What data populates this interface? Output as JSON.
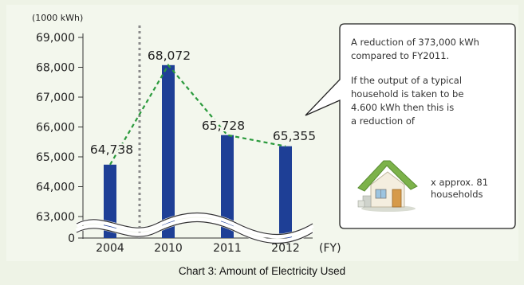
{
  "chart_data": {
    "type": "bar",
    "title": "Chart 3: Amount of Electricity Used",
    "unit_label": "(1000 kWh)",
    "xlabel": "(FY)",
    "categories": [
      "2004",
      "2010",
      "2011",
      "2012"
    ],
    "values": [
      64738,
      68072,
      65728,
      65355
    ],
    "value_labels": [
      "64,738",
      "68,072",
      "65,728",
      "65,355"
    ],
    "y_ticks": [
      63000,
      64000,
      65000,
      66000,
      67000,
      68000,
      69000
    ],
    "y_tick_labels": [
      "0",
      "63,000",
      "64,000",
      "65,000",
      "66,000",
      "67,000",
      "68,000",
      "69,000"
    ],
    "ylim": [
      63000,
      69000
    ],
    "axis_break": true,
    "trend_line": "dashed green connecting bar tops",
    "separator": "dotted vertical line between 2004 and 2010",
    "colors": {
      "bar": "#1e3f96",
      "trend": "#2a9a3c",
      "separator": "#8a8a8a"
    }
  },
  "callout": {
    "line1": "A reduction of 373,000 kWh",
    "line2": "compared to FY2011.",
    "line3": "If the output of a typical",
    "line4": "household is taken to be",
    "line5": "4.600 kWh then this is",
    "line6": "a reduction of",
    "house_text_1": "x approx. 81",
    "house_text_2": "households",
    "house_icon": "house-icon"
  }
}
